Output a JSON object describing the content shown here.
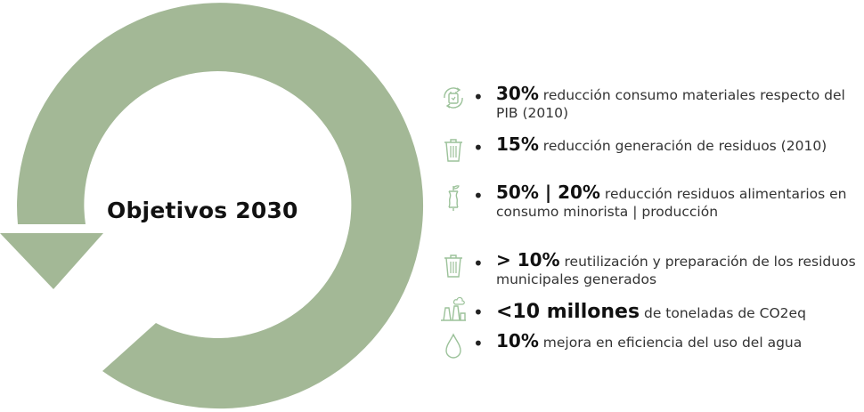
{
  "title": "Objetivos 2030",
  "colors": {
    "ring": "#a3b896",
    "icon": "#9cc29a",
    "text": "#333333"
  },
  "objectives": [
    {
      "icon": "recycle-bag-icon",
      "highlight": "30%",
      "text": " reducción consumo materiales respecto del PIB (2010)"
    },
    {
      "icon": "trash-bin-icon",
      "highlight": "15%",
      "text": " reducción generación de residuos (2010)"
    },
    {
      "icon": "apple-core-icon",
      "highlight": "50% | 20%",
      "text": " reducción  residuos alimentarios en consumo minorista | producción"
    },
    {
      "icon": "trash-bin-icon",
      "highlight": "> 10%",
      "text": " reutilización y preparación de los residuos municipales generados"
    },
    {
      "icon": "factory-smoke-icon",
      "highlight": "<10 millones",
      "text": " de toneladas de CO2eq"
    },
    {
      "icon": "water-drop-icon",
      "highlight": "10%",
      "text": " mejora en eficiencia del uso del agua"
    }
  ]
}
